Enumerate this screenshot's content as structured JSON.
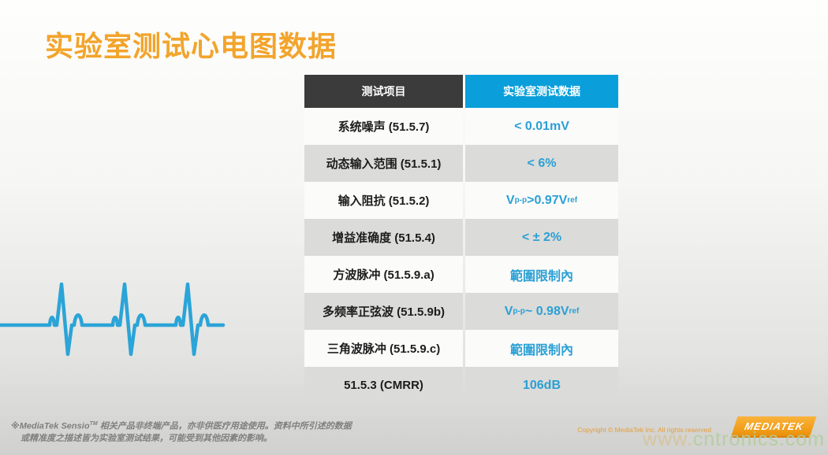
{
  "title": "实验室测试心电图数据",
  "table": {
    "headers": [
      "测试项目",
      "实验室测试数据"
    ],
    "rows": [
      {
        "item": "系统噪声 (51.5.7)",
        "value": "< 0.01mV"
      },
      {
        "item": "动态输入范围 (51.5.1)",
        "value": "< 6%"
      },
      {
        "item": "输入阻抗 (51.5.2)",
        "value": [
          {
            "t": "V"
          },
          {
            "s": "p-p"
          },
          {
            "t": " >0.97V"
          },
          {
            "s": "ref"
          }
        ]
      },
      {
        "item": "增益准确度 (51.5.4)",
        "value": "< ± 2%"
      },
      {
        "item": "方波脉冲 (51.5.9.a)",
        "value": "範圍限制內"
      },
      {
        "item": "多频率正弦波 (51.5.9b)",
        "value": [
          {
            "t": "V"
          },
          {
            "s": "p-p"
          },
          {
            "t": " ~ 0.98V"
          },
          {
            "s": "ref"
          }
        ]
      },
      {
        "item": "三角波脉冲 (51.5.9.c)",
        "value": "範圍限制內"
      },
      {
        "item": "51.5.3 (CMRR)",
        "value": "106dB"
      }
    ]
  },
  "footer": {
    "disclaimer_prefix": "※MediaTek Sensio",
    "disclaimer_sup": "TM",
    "disclaimer_line1": " 相关产品非终端产品，亦非供医疗用途使用。资料中所引述的数据",
    "disclaimer_line2": "或精准度之描述皆为实验室测试结果，可能受到其他因素的影响。",
    "copyright": "Copyright © MediaTek Inc. All rights reserved",
    "logo_text": "MEDIATEK"
  },
  "watermark": {
    "prefix": "www.",
    "suffix": "cntronics.com"
  },
  "colors": {
    "title_orange": "#f2a42b",
    "header_dark": "#3b3b3b",
    "header_blue": "#0a9fda",
    "value_blue": "#2aa0d5",
    "row_gray": "#dbdbd9",
    "ecg_blue": "#2ba4d7",
    "logo_orange": "#f19c17"
  }
}
